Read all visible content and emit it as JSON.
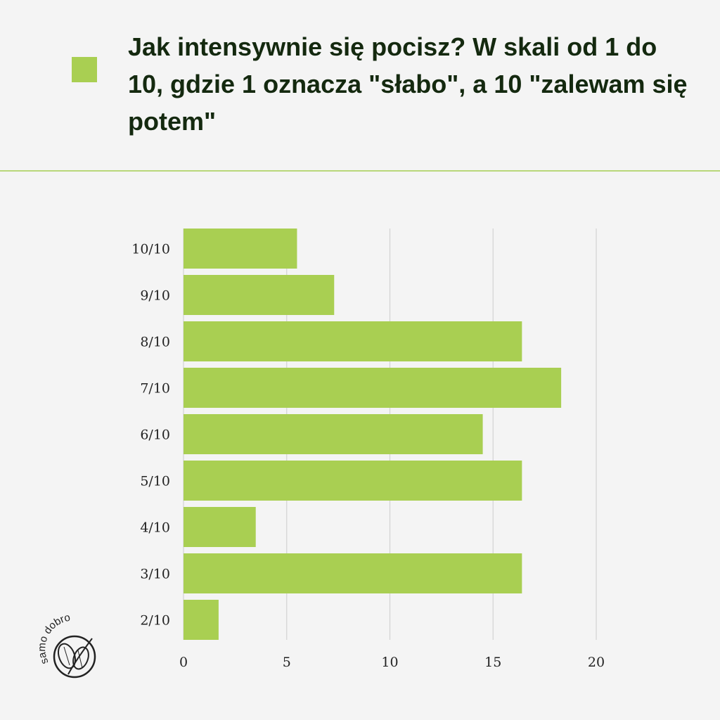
{
  "title": "Jak intensywnie się pocisz? W skali od 1 do 10, gdzie 1 oznacza \"słabo\", a 10 \"zalewam się potem\"",
  "colors": {
    "bar": "#a9cf52",
    "divider": "#b9d77a",
    "grid": "#d3d3d3",
    "text": "#14290f"
  },
  "logo": {
    "text": "samo dobro",
    "icon": "leaf-icon"
  },
  "chart_data": {
    "type": "bar",
    "orientation": "horizontal",
    "categories": [
      "10/10",
      "9/10",
      "8/10",
      "7/10",
      "6/10",
      "5/10",
      "4/10",
      "3/10",
      "2/10"
    ],
    "values": [
      5.5,
      7.3,
      16.4,
      18.3,
      14.5,
      16.4,
      3.5,
      16.4,
      1.7
    ],
    "xlim": [
      0,
      20
    ],
    "xticks": [
      0,
      5,
      10,
      15,
      20
    ],
    "grid": true,
    "legend": "top-left"
  }
}
